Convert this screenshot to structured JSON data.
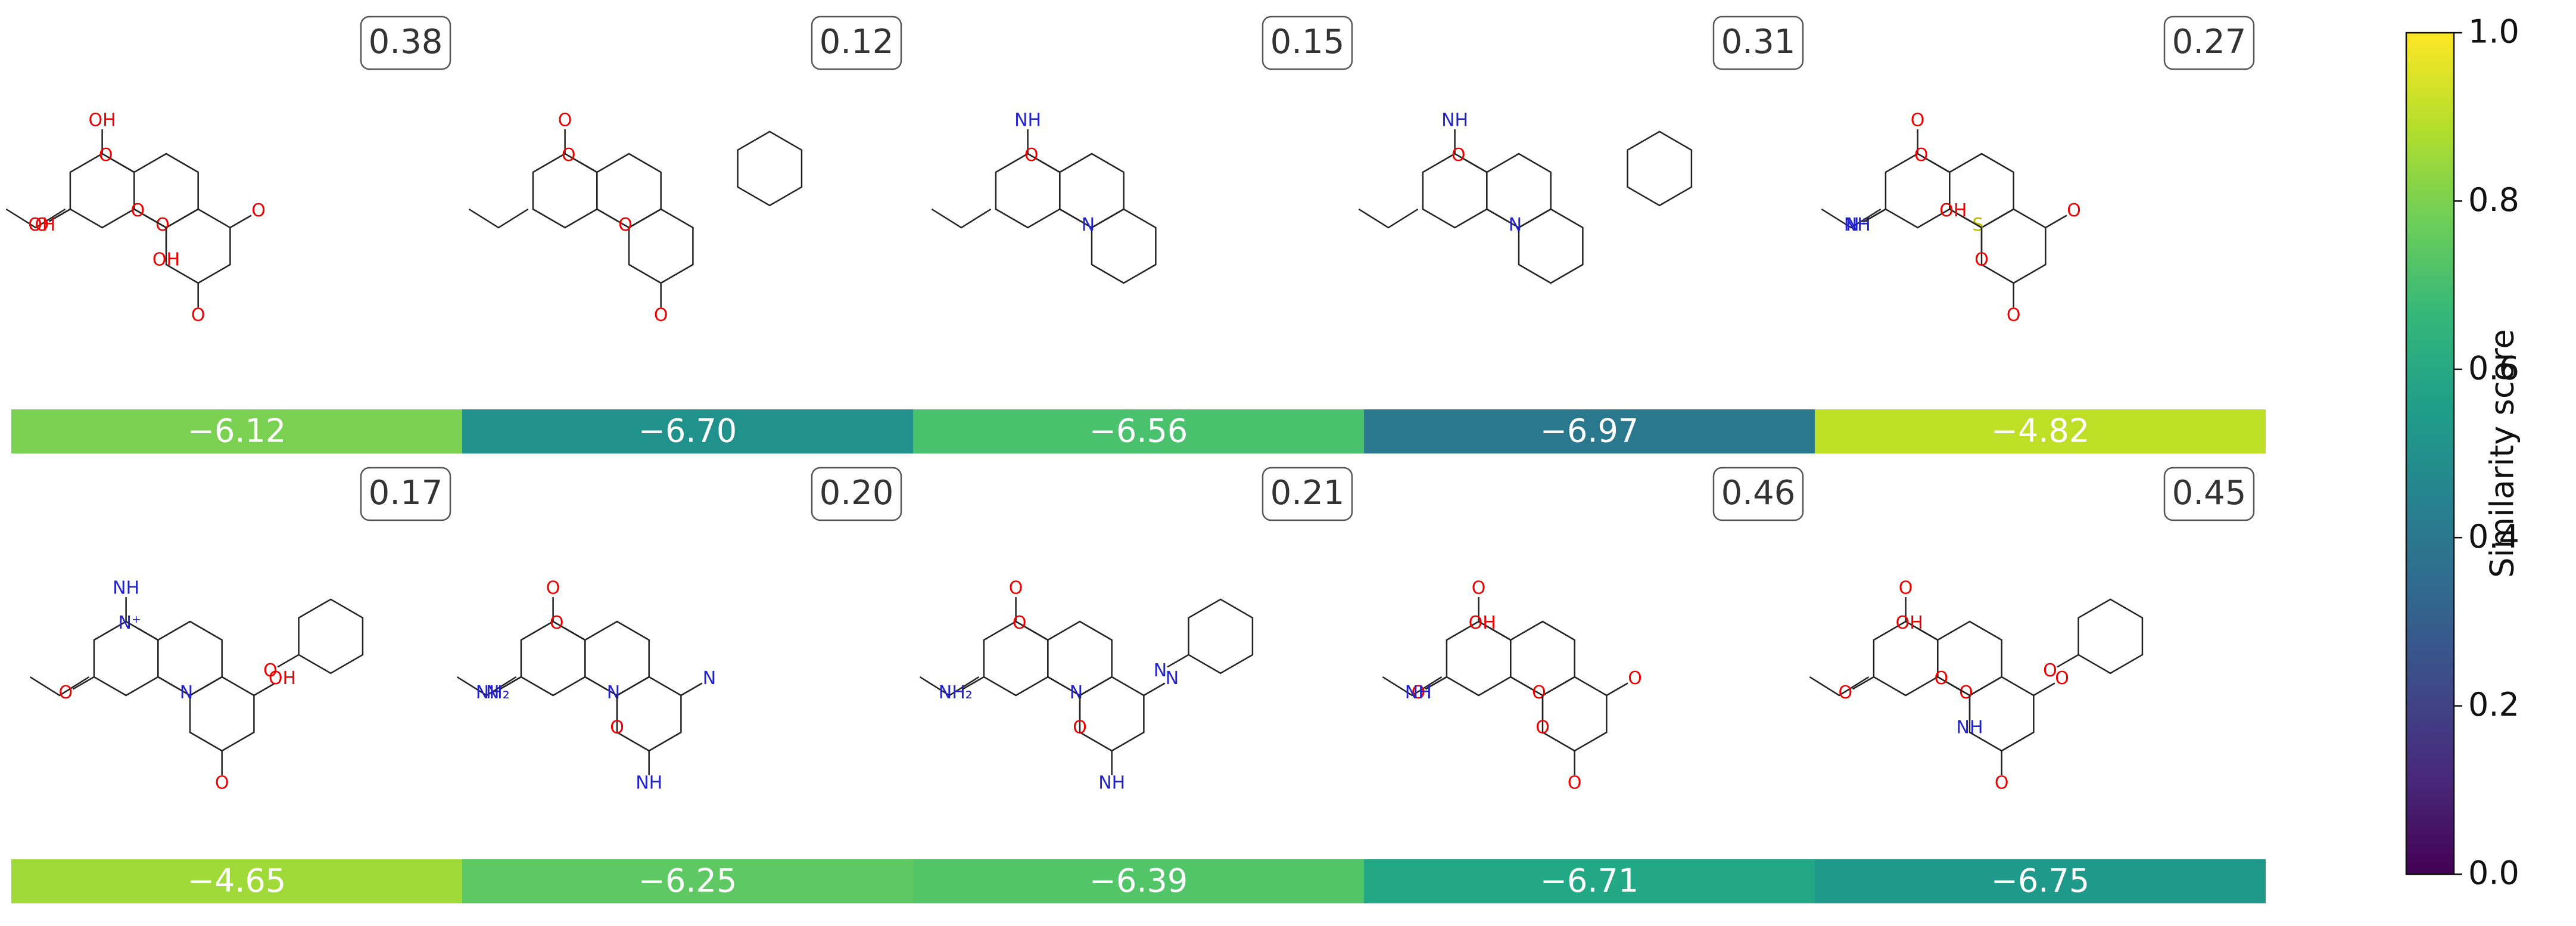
{
  "panels": [
    {
      "similarity": "0.38",
      "score": "−6.12",
      "color": "#7ad151",
      "atoms": [
        "O",
        "OH",
        "O",
        "O",
        "O",
        "O",
        "OH",
        "OH",
        "O"
      ]
    },
    {
      "similarity": "0.12",
      "score": "−6.70",
      "color": "#21918c",
      "atoms": [
        "O",
        "O",
        "O",
        "O"
      ]
    },
    {
      "similarity": "0.15",
      "score": "−6.56",
      "color": "#4ac16d",
      "atoms": [
        "N",
        "NH",
        "O"
      ]
    },
    {
      "similarity": "0.31",
      "score": "−6.97",
      "color": "#2a788e",
      "atoms": [
        "N",
        "NH",
        "O"
      ]
    },
    {
      "similarity": "0.27",
      "score": "−4.82",
      "color": "#bddf26",
      "atoms": [
        "S",
        "O",
        "O",
        "O",
        "O",
        "NH",
        "N⁺",
        "O",
        "OH"
      ]
    },
    {
      "similarity": "0.17",
      "score": "−4.65",
      "color": "#a0da39",
      "atoms": [
        "N",
        "NH",
        "N⁺",
        "O",
        "OH",
        "O",
        "O"
      ]
    },
    {
      "similarity": "0.20",
      "score": "−6.25",
      "color": "#5ec962",
      "atoms": [
        "N",
        "O",
        "O",
        "NH",
        "N",
        "N",
        "NH₂",
        "O"
      ]
    },
    {
      "similarity": "0.21",
      "score": "−6.39",
      "color": "#52c569",
      "atoms": [
        "N",
        "O",
        "O",
        "NH",
        "N",
        "N",
        "NH₂",
        "O"
      ]
    },
    {
      "similarity": "0.46",
      "score": "−6.71",
      "color": "#22a884",
      "atoms": [
        "O",
        "O",
        "OH",
        "O",
        "O",
        "O",
        "NH",
        "O"
      ]
    },
    {
      "similarity": "0.45",
      "score": "−6.75",
      "color": "#1f9a8a",
      "atoms": [
        "O",
        "O",
        "OH",
        "O",
        "O",
        "O",
        "O",
        "NH",
        "O"
      ]
    }
  ],
  "colorbar": {
    "label": "Similarity score",
    "lim": [
      0,
      1
    ],
    "colormap": [
      "#440154",
      "#482878",
      "#3e4989",
      "#31688e",
      "#26828e",
      "#1f9e89",
      "#35b779",
      "#6ece58",
      "#b5de2b",
      "#fde725"
    ],
    "ticks": [
      {
        "value": 0,
        "label": "0.0"
      },
      {
        "value": 0.2,
        "label": "0.2"
      },
      {
        "value": 0.4,
        "label": "0.4"
      },
      {
        "value": 0.6,
        "label": "0.6"
      },
      {
        "value": 0.8,
        "label": "0.8"
      },
      {
        "value": 1,
        "label": "1.0"
      }
    ]
  }
}
